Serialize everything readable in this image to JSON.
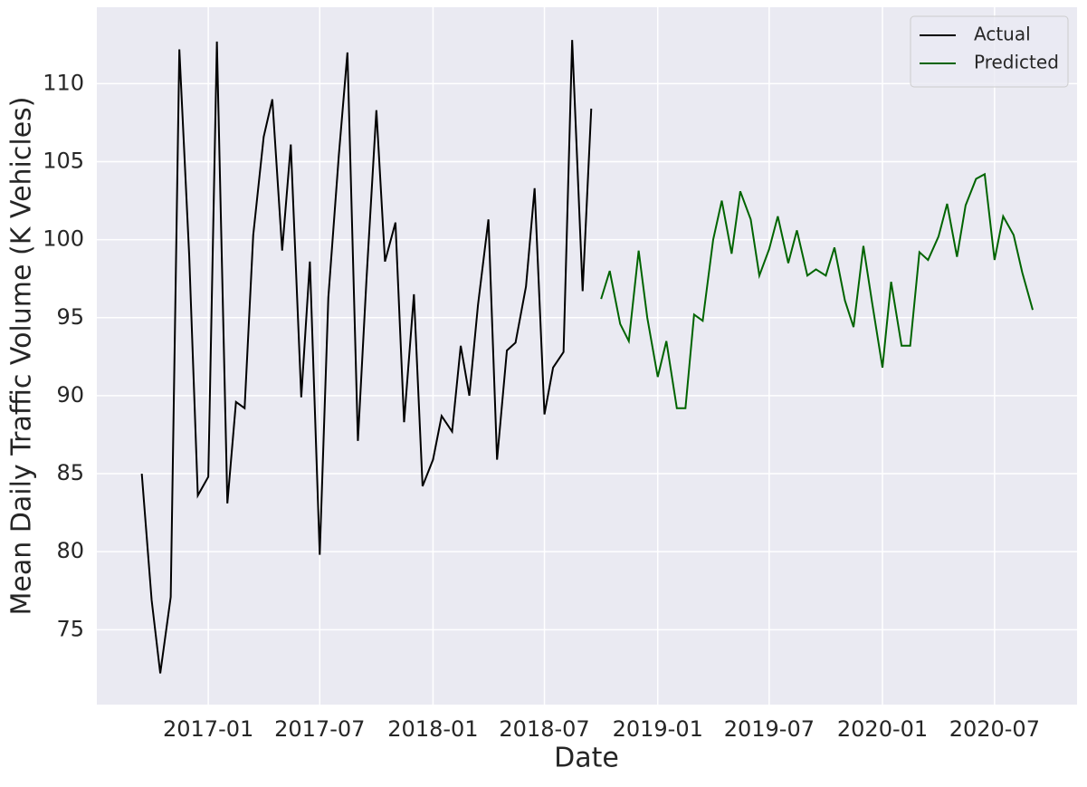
{
  "chart_data": {
    "type": "line",
    "xlabel": "Date",
    "ylabel": "Mean Daily Traffic Volume (K Vehicles)",
    "xlim": [
      "2016-07-04",
      "2020-11-12"
    ],
    "xticks": [
      "2017-01",
      "2017-07",
      "2018-01",
      "2018-07",
      "2019-01",
      "2019-07",
      "2020-01",
      "2020-07"
    ],
    "ylim": [
      70.2,
      114.9
    ],
    "yticks": [
      75,
      80,
      85,
      90,
      95,
      100,
      105,
      110
    ],
    "grid": true,
    "legend": "upper right",
    "series": [
      {
        "name": "Actual",
        "color": "#000000",
        "x": [
          "2016-09-15",
          "2016-10-01",
          "2016-10-15",
          "2016-11-01",
          "2016-11-15",
          "2016-12-01",
          "2016-12-15",
          "2017-01-01",
          "2017-01-15",
          "2017-02-01",
          "2017-02-15",
          "2017-03-01",
          "2017-03-15",
          "2017-04-01",
          "2017-04-15",
          "2017-05-01",
          "2017-05-15",
          "2017-06-01",
          "2017-06-15",
          "2017-07-01",
          "2017-07-15",
          "2017-08-01",
          "2017-08-15",
          "2017-09-01",
          "2017-09-15",
          "2017-10-01",
          "2017-10-15",
          "2017-11-01",
          "2017-11-15",
          "2017-12-01",
          "2017-12-15",
          "2018-01-01",
          "2018-01-15",
          "2018-02-01",
          "2018-02-15",
          "2018-03-01",
          "2018-03-15",
          "2018-04-01",
          "2018-04-15",
          "2018-05-01",
          "2018-05-15",
          "2018-06-01",
          "2018-06-15",
          "2018-07-01",
          "2018-07-15",
          "2018-08-01",
          "2018-08-15",
          "2018-09-01",
          "2018-09-15"
        ],
        "values": [
          85.0,
          76.9,
          72.2,
          77.1,
          112.2,
          99.0,
          83.6,
          84.8,
          112.7,
          83.1,
          89.6,
          89.2,
          100.3,
          106.6,
          109.0,
          99.3,
          106.1,
          89.9,
          98.6,
          79.8,
          96.3,
          105.4,
          112.0,
          87.1,
          97.5,
          108.3,
          98.6,
          101.1,
          88.3,
          96.5,
          84.2,
          85.9,
          88.7,
          87.7,
          93.2,
          90.0,
          95.8,
          101.3,
          85.9,
          92.9,
          93.4,
          97.0,
          103.3,
          88.8,
          91.8,
          92.8,
          112.8,
          96.7,
          108.4
        ]
      },
      {
        "name": "Predicted",
        "color": "#006400",
        "x": [
          "2018-10-01",
          "2018-10-15",
          "2018-11-01",
          "2018-11-15",
          "2018-12-01",
          "2018-12-15",
          "2019-01-01",
          "2019-01-15",
          "2019-02-01",
          "2019-02-15",
          "2019-03-01",
          "2019-03-15",
          "2019-04-01",
          "2019-04-15",
          "2019-05-01",
          "2019-05-15",
          "2019-06-01",
          "2019-06-15",
          "2019-07-01",
          "2019-07-15",
          "2019-08-01",
          "2019-08-15",
          "2019-09-01",
          "2019-09-15",
          "2019-10-01",
          "2019-10-15",
          "2019-11-01",
          "2019-11-15",
          "2019-12-01",
          "2019-12-15",
          "2020-01-01",
          "2020-01-15",
          "2020-02-01",
          "2020-02-15",
          "2020-03-01",
          "2020-03-15",
          "2020-04-01",
          "2020-04-15",
          "2020-05-01",
          "2020-05-15",
          "2020-06-01",
          "2020-06-15",
          "2020-07-01",
          "2020-07-15",
          "2020-08-01",
          "2020-08-15",
          "2020-09-01"
        ],
        "values": [
          96.2,
          98.0,
          94.6,
          93.5,
          99.3,
          95.0,
          91.2,
          93.5,
          89.2,
          89.2,
          95.2,
          94.8,
          100.0,
          102.5,
          99.1,
          103.1,
          101.3,
          97.7,
          99.4,
          101.5,
          98.5,
          100.6,
          97.7,
          98.1,
          97.7,
          99.5,
          96.1,
          94.4,
          99.6,
          96.0,
          91.8,
          97.3,
          93.2,
          93.2,
          99.2,
          98.7,
          100.2,
          102.3,
          98.9,
          102.2,
          103.9,
          104.2,
          98.7,
          101.5,
          100.3,
          97.9,
          95.5
        ]
      }
    ]
  }
}
